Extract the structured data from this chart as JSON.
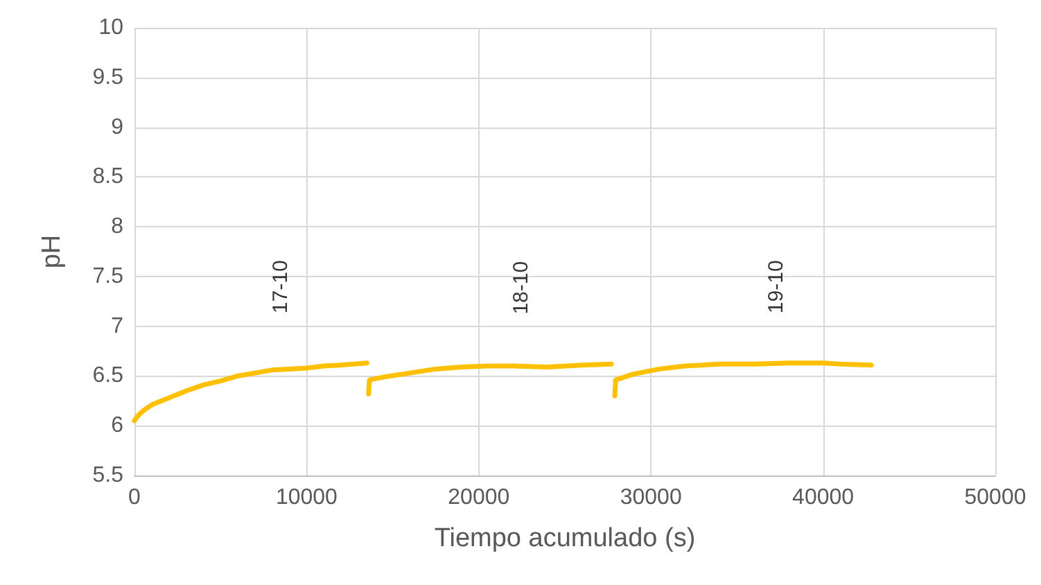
{
  "chart_data": {
    "type": "line",
    "xlabel": "Tiempo acumulado (s)",
    "ylabel": "pH",
    "xlim": [
      0,
      50000
    ],
    "xticks": [
      0,
      10000,
      20000,
      30000,
      40000,
      50000
    ],
    "ylim": [
      5.5,
      10
    ],
    "yticks": [
      5.5,
      6,
      6.5,
      7,
      7.5,
      8,
      8.5,
      9,
      9.5,
      10
    ],
    "grid": true,
    "marker": "none",
    "line_style": "solid",
    "series": [
      {
        "color": "#ffc000",
        "x": [
          0,
          200,
          500,
          1000,
          2000,
          3000,
          4000,
          5000,
          6000,
          7000,
          8000,
          9000,
          10000,
          11000,
          12000,
          13500
        ],
        "values": [
          6.05,
          6.1,
          6.15,
          6.21,
          6.28,
          6.35,
          6.41,
          6.45,
          6.5,
          6.53,
          6.56,
          6.57,
          6.58,
          6.6,
          6.61,
          6.63
        ]
      },
      {
        "color": "#ffc000",
        "x": [
          13600,
          13650,
          14500,
          16000,
          17500,
          19000,
          20500,
          22000,
          24000,
          26000,
          27700
        ],
        "values": [
          6.32,
          6.46,
          6.49,
          6.53,
          6.57,
          6.59,
          6.6,
          6.6,
          6.59,
          6.61,
          6.62
        ]
      },
      {
        "color": "#ffc000",
        "x": [
          27900,
          27950,
          29000,
          30500,
          32000,
          34000,
          36000,
          38000,
          40000,
          41000,
          42800
        ],
        "values": [
          6.3,
          6.46,
          6.52,
          6.57,
          6.6,
          6.62,
          6.62,
          6.63,
          6.63,
          6.62,
          6.61
        ]
      }
    ],
    "annotations": [
      "17-10",
      "18-10",
      "19-10"
    ]
  }
}
